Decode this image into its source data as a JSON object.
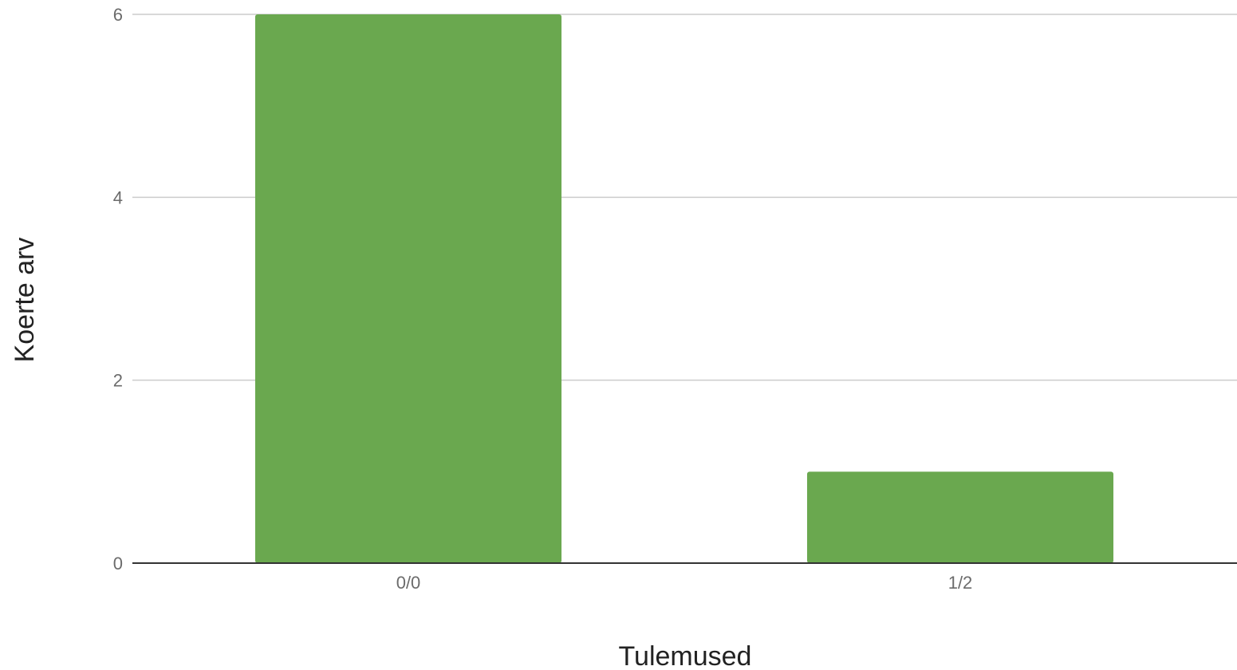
{
  "chart_data": {
    "type": "bar",
    "title": "",
    "xlabel": "Tulemused",
    "ylabel": "Koerte arv",
    "categories": [
      "0/0",
      "1/2"
    ],
    "values": [
      6,
      1
    ],
    "ylim": [
      0,
      6
    ],
    "yticks": [
      0,
      2,
      4,
      6
    ],
    "grid": true,
    "legend": "none",
    "colors": {
      "bar": "#6aa84f",
      "grid": "#cccccc",
      "axis": "#333333"
    }
  }
}
